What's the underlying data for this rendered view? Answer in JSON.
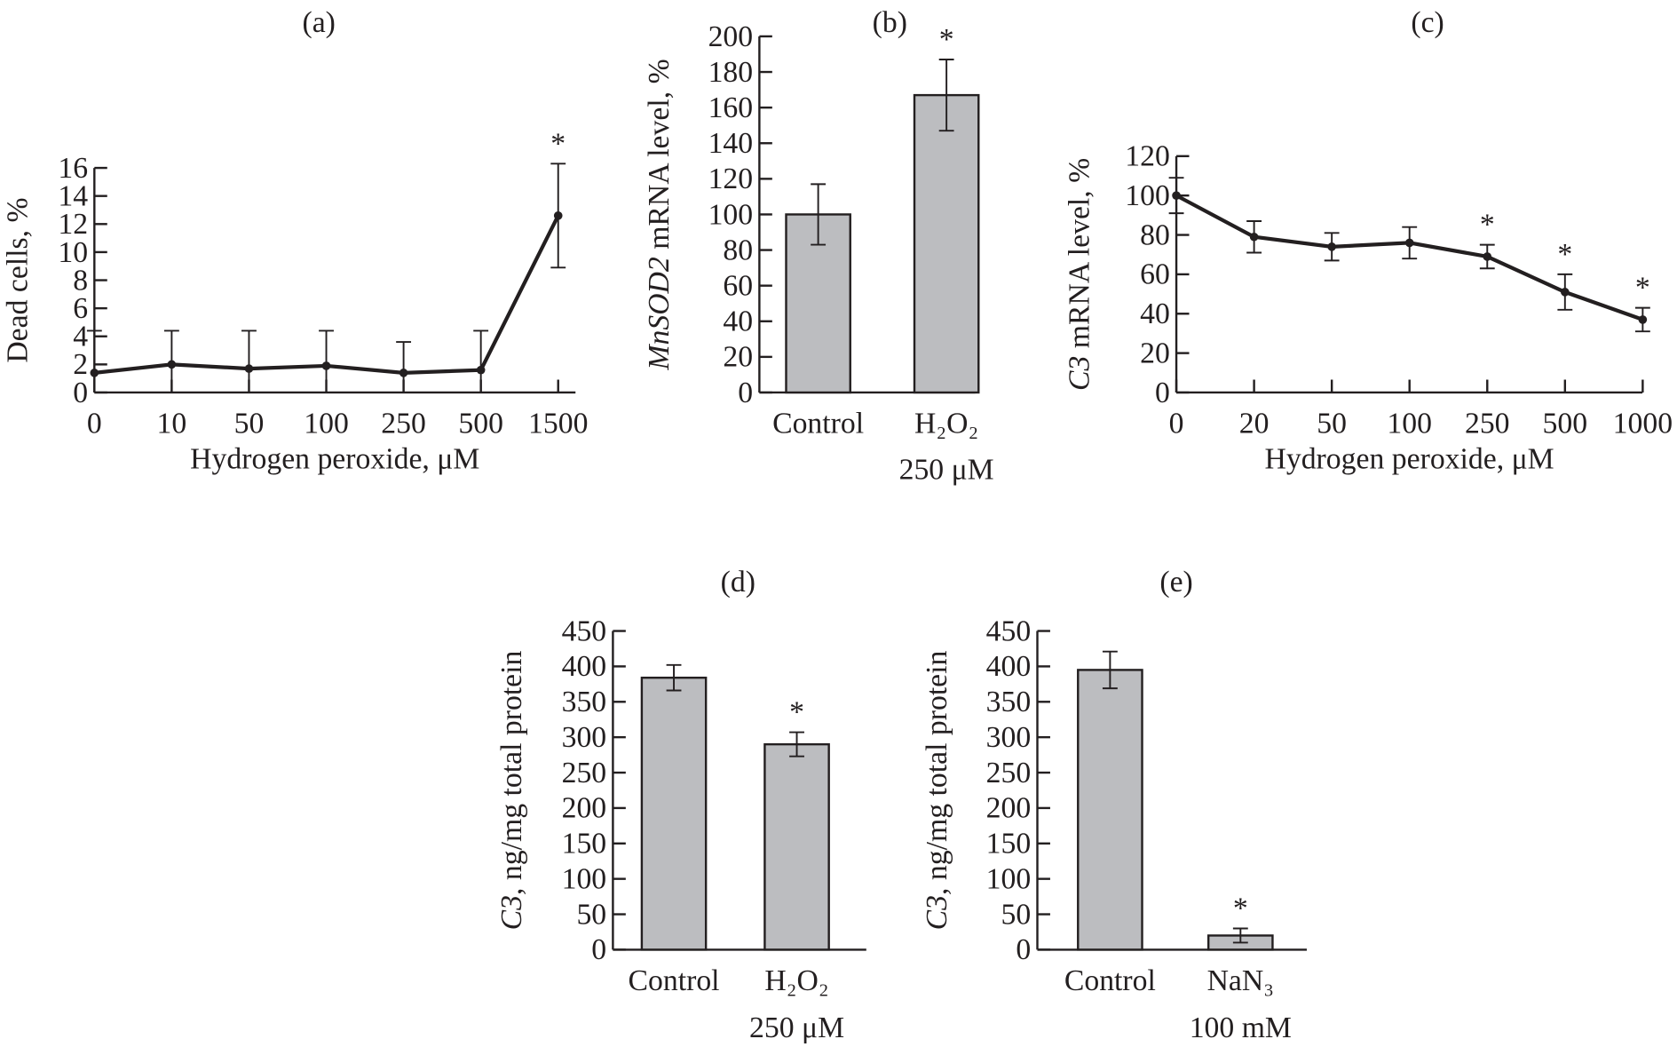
{
  "chart_data": [
    {
      "panel": "(a)",
      "type": "line",
      "categories": [
        "0",
        "10",
        "50",
        "100",
        "250",
        "500",
        "1500"
      ],
      "values": [
        1.4,
        2.0,
        1.7,
        1.9,
        1.4,
        1.6,
        12.6
      ],
      "errors": [
        3.0,
        2.4,
        2.7,
        2.5,
        2.2,
        2.8,
        3.7
      ],
      "significant": [
        false,
        false,
        false,
        false,
        false,
        false,
        true
      ],
      "xlabel": "Hydrogen peroxide, μM",
      "ylabel_italic": "",
      "ylabel": "Dead cells, %",
      "ylim": [
        0,
        16
      ],
      "yticks": [
        "0",
        "2",
        "4",
        "6",
        "8",
        "10",
        "12",
        "14",
        "16"
      ]
    },
    {
      "panel": "(b)",
      "type": "bar",
      "categories": [
        "Control",
        "H₂O₂"
      ],
      "category_sublabels": [
        "",
        "250 μM"
      ],
      "values": [
        100,
        167
      ],
      "errors": [
        17,
        20
      ],
      "significant": [
        false,
        true
      ],
      "xlabel": "",
      "ylabel_italic": "MnSOD2",
      "ylabel": " mRNA level, %",
      "ylim": [
        0,
        200
      ],
      "yticks": [
        "0",
        "20",
        "40",
        "60",
        "80",
        "100",
        "120",
        "140",
        "160",
        "180",
        "200"
      ],
      "bar_color": "#bcbdc0"
    },
    {
      "panel": "(c)",
      "type": "line",
      "categories": [
        "0",
        "20",
        "50",
        "100",
        "250",
        "500",
        "1000"
      ],
      "values": [
        100,
        79,
        74,
        76,
        69,
        51,
        37
      ],
      "errors": [
        9,
        8,
        7,
        8,
        6,
        9,
        6
      ],
      "significant": [
        false,
        false,
        false,
        false,
        true,
        true,
        true
      ],
      "xlabel": "Hydrogen peroxide, μM",
      "ylabel_italic": "C3",
      "ylabel": " mRNA level, %",
      "ylim": [
        0,
        120
      ],
      "yticks": [
        "0",
        "20",
        "40",
        "60",
        "80",
        "100",
        "120"
      ]
    },
    {
      "panel": "(d)",
      "type": "bar",
      "categories": [
        "Control",
        "H₂O₂"
      ],
      "category_sublabels": [
        "",
        "250 μM"
      ],
      "values": [
        384,
        290
      ],
      "errors": [
        18,
        17
      ],
      "significant": [
        false,
        true
      ],
      "xlabel": "",
      "ylabel_italic": "C3",
      "ylabel": ", ng/mg total protein",
      "ylim": [
        0,
        450
      ],
      "yticks": [
        "0",
        "50",
        "100",
        "150",
        "200",
        "250",
        "300",
        "350",
        "400",
        "450"
      ],
      "bar_color": "#bcbdc0"
    },
    {
      "panel": "(e)",
      "type": "bar",
      "categories": [
        "Control",
        "NaN₃"
      ],
      "category_sublabels": [
        "",
        "100 mM"
      ],
      "values": [
        395,
        20
      ],
      "errors": [
        26,
        10
      ],
      "significant": [
        false,
        true
      ],
      "xlabel": "",
      "ylabel_italic": "C3",
      "ylabel": ", ng/mg total protein",
      "ylim": [
        0,
        450
      ],
      "yticks": [
        "0",
        "50",
        "100",
        "150",
        "200",
        "250",
        "300",
        "350",
        "400",
        "450"
      ],
      "bar_color": "#bcbdc0"
    }
  ],
  "significance_marker": "*"
}
